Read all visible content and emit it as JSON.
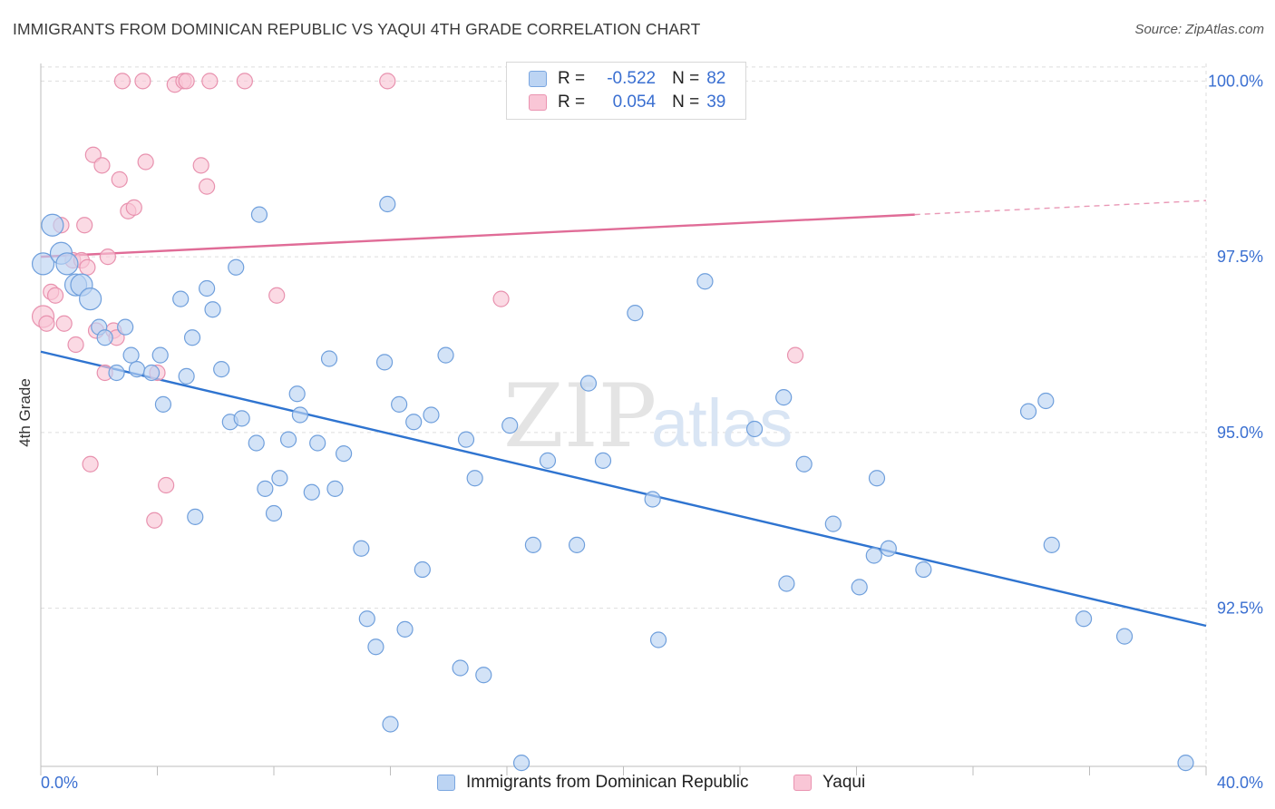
{
  "title": "IMMIGRANTS FROM DOMINICAN REPUBLIC VS YAQUI 4TH GRADE CORRELATION CHART",
  "source": "Source: ZipAtlas.com",
  "watermark": {
    "zip": "ZIP",
    "atlas": "atlas"
  },
  "legend": {
    "r_label": "R =",
    "n_label": "N =",
    "series1": {
      "r": "-0.522",
      "n": "82"
    },
    "series2": {
      "r": "0.054",
      "n": "39"
    }
  },
  "bottom_legend": {
    "series1": "Immigrants from Dominican Republic",
    "series2": "Yaqui"
  },
  "chart_data": {
    "type": "scatter",
    "title": "IMMIGRANTS FROM DOMINICAN REPUBLIC VS YAQUI 4TH GRADE CORRELATION CHART",
    "xlabel": "",
    "ylabel": "4th Grade",
    "xlim": [
      0,
      40
    ],
    "ylim": [
      90.25,
      100.25
    ],
    "x_tick_labels": [
      "0.0%",
      "40.0%"
    ],
    "y_ticks": [
      92.5,
      95.0,
      97.5,
      100.0
    ],
    "y_tick_labels": [
      "92.5%",
      "95.0%",
      "97.5%",
      "100.0%"
    ],
    "grid": true,
    "colors": {
      "series1": "#2f74d0",
      "series2": "#e06c97",
      "series1_fill": "#bcd4f3",
      "series2_fill": "#f9c6d6",
      "tick_label": "#3a6fd1"
    },
    "series": [
      {
        "name": "Immigrants from Dominican Republic",
        "R": -0.522,
        "N": 82,
        "trend": {
          "x": [
            0,
            40
          ],
          "y": [
            96.15,
            92.25
          ],
          "solid_to": 40
        },
        "points": [
          [
            0.08,
            97.4,
            1
          ],
          [
            0.4,
            97.95,
            1
          ],
          [
            0.7,
            97.55,
            1
          ],
          [
            0.9,
            97.4,
            1
          ],
          [
            1.2,
            97.1,
            1
          ],
          [
            1.4,
            97.1,
            1
          ],
          [
            1.7,
            96.9,
            1
          ],
          [
            2.0,
            96.5,
            0
          ],
          [
            2.2,
            96.35,
            0
          ],
          [
            2.6,
            95.85,
            0
          ],
          [
            2.9,
            96.5,
            0
          ],
          [
            3.1,
            96.1,
            0
          ],
          [
            3.3,
            95.9,
            0
          ],
          [
            3.8,
            95.85,
            0
          ],
          [
            4.1,
            96.1,
            0
          ],
          [
            4.2,
            95.4,
            0
          ],
          [
            4.8,
            96.9,
            0
          ],
          [
            5.0,
            95.8,
            0
          ],
          [
            5.2,
            96.35,
            0
          ],
          [
            5.3,
            93.8,
            0
          ],
          [
            5.7,
            97.05,
            0
          ],
          [
            5.9,
            96.75,
            0
          ],
          [
            6.2,
            95.9,
            0
          ],
          [
            6.5,
            95.15,
            0
          ],
          [
            6.7,
            97.35,
            0
          ],
          [
            6.9,
            95.2,
            0
          ],
          [
            7.4,
            94.85,
            0
          ],
          [
            7.5,
            98.1,
            0
          ],
          [
            7.7,
            94.2,
            0
          ],
          [
            8.0,
            93.85,
            0
          ],
          [
            8.2,
            94.35,
            0
          ],
          [
            8.5,
            94.9,
            0
          ],
          [
            8.8,
            95.55,
            0
          ],
          [
            8.9,
            95.25,
            0
          ],
          [
            9.3,
            94.15,
            0
          ],
          [
            9.5,
            94.85,
            0
          ],
          [
            9.9,
            96.05,
            0
          ],
          [
            10.1,
            94.2,
            0
          ],
          [
            10.4,
            94.7,
            0
          ],
          [
            11.0,
            93.35,
            0
          ],
          [
            11.2,
            92.35,
            0
          ],
          [
            11.5,
            91.95,
            0
          ],
          [
            11.8,
            96.0,
            0
          ],
          [
            11.9,
            98.25,
            0
          ],
          [
            12.0,
            90.85,
            0
          ],
          [
            12.3,
            95.4,
            0
          ],
          [
            12.5,
            92.2,
            0
          ],
          [
            12.8,
            95.15,
            0
          ],
          [
            13.1,
            93.05,
            0
          ],
          [
            13.4,
            95.25,
            0
          ],
          [
            13.9,
            96.1,
            0
          ],
          [
            14.4,
            91.65,
            0
          ],
          [
            14.6,
            94.9,
            0
          ],
          [
            14.9,
            94.35,
            0
          ],
          [
            15.2,
            91.55,
            0
          ],
          [
            16.1,
            95.1,
            0
          ],
          [
            16.5,
            90.3,
            0
          ],
          [
            16.9,
            93.4,
            0
          ],
          [
            17.4,
            94.6,
            0
          ],
          [
            18.4,
            93.4,
            0
          ],
          [
            18.8,
            95.7,
            0
          ],
          [
            19.3,
            94.6,
            0
          ],
          [
            20.4,
            96.7,
            0
          ],
          [
            21.0,
            94.05,
            0
          ],
          [
            21.2,
            92.05,
            0
          ],
          [
            22.8,
            97.15,
            0
          ],
          [
            24.5,
            95.05,
            0
          ],
          [
            25.5,
            95.5,
            0
          ],
          [
            25.6,
            92.85,
            0
          ],
          [
            26.2,
            94.55,
            0
          ],
          [
            27.2,
            93.7,
            0
          ],
          [
            28.1,
            92.8,
            0
          ],
          [
            28.6,
            93.25,
            0
          ],
          [
            28.7,
            94.35,
            0
          ],
          [
            29.1,
            93.35,
            0
          ],
          [
            30.3,
            93.05,
            0
          ],
          [
            33.9,
            95.3,
            0
          ],
          [
            34.5,
            95.45,
            0
          ],
          [
            34.7,
            93.4,
            0
          ],
          [
            35.8,
            92.35,
            0
          ],
          [
            37.2,
            92.1,
            0
          ],
          [
            39.3,
            90.3,
            0
          ]
        ]
      },
      {
        "name": "Yaqui",
        "R": 0.054,
        "N": 39,
        "trend": {
          "x": [
            0,
            40
          ],
          "y": [
            97.5,
            98.3
          ],
          "solid_to": 30
        },
        "points": [
          [
            0.08,
            96.65,
            1
          ],
          [
            0.2,
            96.55,
            0
          ],
          [
            0.35,
            97.0,
            0
          ],
          [
            0.5,
            96.95,
            0
          ],
          [
            0.7,
            97.95,
            0
          ],
          [
            0.8,
            96.55,
            0
          ],
          [
            1.1,
            97.45,
            0
          ],
          [
            1.2,
            96.25,
            0
          ],
          [
            1.4,
            97.45,
            0
          ],
          [
            1.5,
            97.95,
            0
          ],
          [
            1.6,
            97.35,
            0
          ],
          [
            1.7,
            94.55,
            0
          ],
          [
            1.8,
            98.95,
            0
          ],
          [
            1.9,
            96.45,
            0
          ],
          [
            2.1,
            98.8,
            0
          ],
          [
            2.2,
            95.85,
            0
          ],
          [
            2.3,
            97.5,
            0
          ],
          [
            2.5,
            96.45,
            0
          ],
          [
            2.6,
            96.35,
            0
          ],
          [
            2.7,
            98.6,
            0
          ],
          [
            2.8,
            100.0,
            0
          ],
          [
            3.0,
            98.15,
            0
          ],
          [
            3.2,
            98.2,
            0
          ],
          [
            3.5,
            100.0,
            0
          ],
          [
            3.6,
            98.85,
            0
          ],
          [
            3.9,
            93.75,
            0
          ],
          [
            4.0,
            95.85,
            0
          ],
          [
            4.3,
            94.25,
            0
          ],
          [
            4.6,
            99.95,
            0
          ],
          [
            4.9,
            100.0,
            0
          ],
          [
            5.0,
            100.0,
            0
          ],
          [
            5.5,
            98.8,
            0
          ],
          [
            5.7,
            98.5,
            0
          ],
          [
            5.8,
            100.0,
            0
          ],
          [
            7.0,
            100.0,
            0
          ],
          [
            8.1,
            96.95,
            0
          ],
          [
            11.9,
            100.0,
            0
          ],
          [
            15.8,
            96.9,
            0
          ],
          [
            25.9,
            96.1,
            0
          ]
        ]
      }
    ]
  }
}
